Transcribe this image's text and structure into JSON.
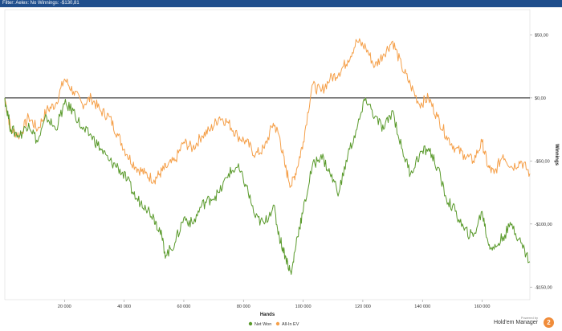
{
  "header": {
    "filter_text": "Filter: Aelex: No Winnings: -$130,81"
  },
  "branding": {
    "powered_by": "Powered by",
    "name": "Hold'em Manager",
    "logo_glyph": "2"
  },
  "chart_data": {
    "type": "line",
    "xlabel": "Hands",
    "ylabel": "Winnings",
    "xlim": [
      0,
      176000
    ],
    "ylim": [
      -160,
      70
    ],
    "x_ticks": [
      20000,
      40000,
      60000,
      80000,
      100000,
      120000,
      140000,
      160000
    ],
    "x_tick_labels": [
      "20 000",
      "40 000",
      "60 000",
      "80 000",
      "100 000",
      "120 000",
      "140 000",
      "160 000"
    ],
    "y_ticks": [
      50,
      0,
      -50,
      -100,
      -150
    ],
    "y_tick_labels": [
      "$50,00",
      "$0,00",
      "-$50,00",
      "-$100,00",
      "-$150,00"
    ],
    "y_axis_side": "right",
    "zero_line": true,
    "grid": false,
    "legend_position": "bottom-center",
    "series": [
      {
        "name": "Net Won",
        "color": "#5a9a2c",
        "x": [
          0,
          2000,
          5000,
          8000,
          11000,
          14000,
          17000,
          20000,
          23000,
          26000,
          29000,
          32000,
          35000,
          38000,
          41000,
          44000,
          47000,
          50000,
          52000,
          54000,
          57000,
          60000,
          63000,
          66000,
          69000,
          72000,
          75000,
          78000,
          81000,
          84000,
          87000,
          90000,
          92000,
          94000,
          96000,
          98000,
          100000,
          103000,
          106000,
          109000,
          112000,
          115000,
          118000,
          121000,
          124000,
          127000,
          130000,
          133000,
          136000,
          139000,
          142000,
          145000,
          148000,
          151000,
          154000,
          157000,
          160000,
          162000,
          164000,
          167000,
          170000,
          173000,
          176000
        ],
        "y": [
          0,
          -25,
          -30,
          -20,
          -35,
          -15,
          -25,
          -5,
          -10,
          -25,
          -30,
          -40,
          -50,
          -55,
          -65,
          -80,
          -85,
          -95,
          -105,
          -125,
          -115,
          -95,
          -100,
          -85,
          -80,
          -75,
          -60,
          -55,
          -70,
          -95,
          -100,
          -85,
          -110,
          -125,
          -140,
          -110,
          -90,
          -55,
          -45,
          -60,
          -75,
          -45,
          -25,
          0,
          -15,
          -25,
          -10,
          -40,
          -60,
          -45,
          -40,
          -55,
          -80,
          -90,
          -105,
          -110,
          -90,
          -115,
          -120,
          -110,
          -100,
          -115,
          -130
        ]
      },
      {
        "name": "All-In EV",
        "color": "#f5a04a",
        "x": [
          0,
          2000,
          5000,
          8000,
          11000,
          14000,
          17000,
          20000,
          23000,
          26000,
          29000,
          32000,
          35000,
          38000,
          41000,
          44000,
          47000,
          50000,
          52000,
          54000,
          57000,
          60000,
          63000,
          66000,
          69000,
          72000,
          75000,
          78000,
          81000,
          84000,
          87000,
          90000,
          92000,
          94000,
          96000,
          98000,
          100000,
          103000,
          106000,
          109000,
          112000,
          115000,
          118000,
          121000,
          124000,
          127000,
          130000,
          133000,
          136000,
          139000,
          142000,
          145000,
          148000,
          151000,
          154000,
          157000,
          160000,
          162000,
          164000,
          167000,
          170000,
          173000,
          176000
        ],
        "y": [
          0,
          -25,
          -30,
          -15,
          -25,
          -10,
          -5,
          15,
          5,
          -5,
          0,
          -10,
          -15,
          -30,
          -45,
          -55,
          -60,
          -65,
          -60,
          -55,
          -50,
          -35,
          -40,
          -30,
          -25,
          -15,
          -20,
          -30,
          -35,
          -45,
          -40,
          -20,
          -30,
          -55,
          -70,
          -55,
          -35,
          10,
          5,
          15,
          20,
          30,
          45,
          40,
          25,
          35,
          45,
          25,
          10,
          -5,
          0,
          -15,
          -30,
          -40,
          -45,
          -50,
          -35,
          -55,
          -60,
          -45,
          -55,
          -50,
          -60
        ]
      }
    ]
  }
}
